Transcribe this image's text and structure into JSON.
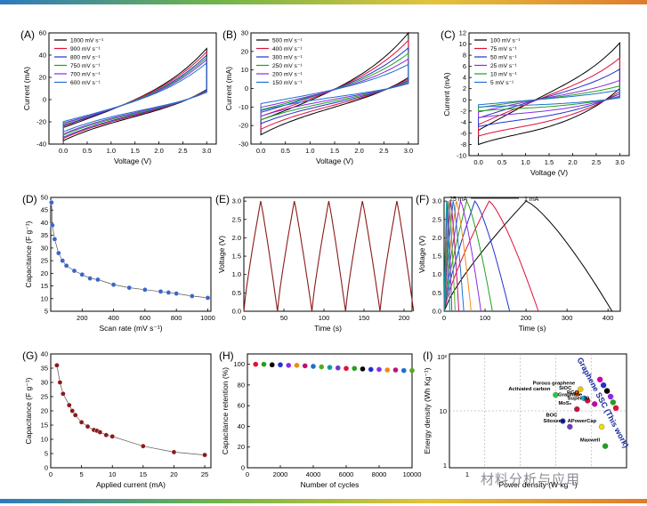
{
  "figure": {
    "watermark": "材料分析与应用"
  },
  "chart_data": [
    {
      "id": "A",
      "type": "line",
      "label": "(A)",
      "xlabel": "Voltage  (V)",
      "ylabel": "Current (mA)",
      "xlim": [
        -0.3,
        3.2
      ],
      "ylim": [
        -40,
        60
      ],
      "xticks": [
        0.0,
        0.5,
        1.0,
        1.5,
        2.0,
        2.5,
        3.0
      ],
      "xtick_labels": [
        "0.0",
        "0.5",
        "1.0",
        "1.5",
        "2.0",
        "2.5",
        "3.0"
      ],
      "yticks": [
        -40,
        -20,
        0,
        20,
        40,
        60
      ],
      "ytick_labels": [
        "-40",
        "-20",
        "0",
        "20",
        "40",
        "60"
      ],
      "legend_pos": "top-left",
      "series": [
        {
          "name": "1000 mV s⁻¹",
          "color": "#000000",
          "amp": 46,
          "neg": -37,
          "w": 14
        },
        {
          "name": "900 mV s⁻¹",
          "color": "#e0103a",
          "amp": 43,
          "neg": -35,
          "w": 13
        },
        {
          "name": "800 mV s⁻¹",
          "color": "#2233cc",
          "amp": 40,
          "neg": -34,
          "w": 12
        },
        {
          "name": "750 mV s⁻¹",
          "color": "#22a022",
          "amp": 38,
          "neg": -32,
          "w": 11
        },
        {
          "name": "700 mV s⁻¹",
          "color": "#8a2be2",
          "amp": 36,
          "neg": -31,
          "w": 10
        },
        {
          "name": "600 mV s⁻¹",
          "color": "#1f6fd1",
          "amp": 33,
          "neg": -29,
          "w": 9
        }
      ]
    },
    {
      "id": "B",
      "type": "line",
      "label": "(B)",
      "xlabel": "Voltage  (V)",
      "ylabel": "Current (mA)",
      "xlim": [
        -0.2,
        3.2
      ],
      "ylim": [
        -30,
        30
      ],
      "xticks": [
        0.0,
        0.5,
        1.0,
        1.5,
        2.0,
        2.5,
        3.0
      ],
      "xtick_labels": [
        "0.0",
        "0.5",
        "1.0",
        "1.5",
        "2.0",
        "2.5",
        "3.0"
      ],
      "yticks": [
        -30,
        -20,
        -10,
        0,
        10,
        20,
        30
      ],
      "ytick_labels": [
        "-30",
        "-20",
        "-10",
        "0",
        "10",
        "20",
        "30"
      ],
      "legend_pos": "top-left",
      "series": [
        {
          "name": "500 mV s⁻¹",
          "color": "#000000",
          "amp": 30,
          "neg": -25,
          "w": 9
        },
        {
          "name": "400 mV s⁻¹",
          "color": "#e0103a",
          "amp": 26,
          "neg": -22,
          "w": 8
        },
        {
          "name": "300 mV s⁻¹",
          "color": "#2233cc",
          "amp": 22,
          "neg": -19,
          "w": 7
        },
        {
          "name": "250 mV s⁻¹",
          "color": "#22a022",
          "amp": 19,
          "neg": -17,
          "w": 6
        },
        {
          "name": "200 mV s⁻¹",
          "color": "#8a2be2",
          "amp": 16,
          "neg": -15,
          "w": 5
        },
        {
          "name": "150 mV s⁻¹",
          "color": "#1f6fd1",
          "amp": 13,
          "neg": -12,
          "w": 4
        }
      ]
    },
    {
      "id": "C",
      "type": "line",
      "label": "(C)",
      "xlabel": "Voltage  (V)",
      "ylabel": "Current (mA)",
      "xlim": [
        -0.2,
        3.2
      ],
      "ylim": [
        -10,
        12
      ],
      "xticks": [
        0.0,
        0.5,
        1.0,
        1.5,
        2.0,
        2.5,
        3.0
      ],
      "xtick_labels": [
        "0.0",
        "0.5",
        "1.0",
        "1.5",
        "2.0",
        "2.5",
        "3.0"
      ],
      "yticks": [
        -10,
        -8,
        -6,
        -4,
        -2,
        0,
        2,
        4,
        6,
        8,
        10,
        12
      ],
      "ytick_labels": [
        "-10",
        "-8",
        "-6",
        "-4",
        "-2",
        "0",
        "2",
        "4",
        "6",
        "8",
        "10",
        "12"
      ],
      "legend_pos": "top-left",
      "series": [
        {
          "name": "100 mV s⁻¹",
          "color": "#000000",
          "amp": 10.2,
          "neg": -8,
          "w": 5.5
        },
        {
          "name": "75 mV s⁻¹",
          "color": "#e0103a",
          "amp": 7.5,
          "neg": -6.5,
          "w": 4.3
        },
        {
          "name": "50 mV s⁻¹",
          "color": "#2233cc",
          "amp": 5.5,
          "neg": -4.8,
          "w": 3.2
        },
        {
          "name": "25 mV s⁻¹",
          "color": "#8a2be2",
          "amp": 3.5,
          "neg": -3.2,
          "w": 2.2
        },
        {
          "name": "10 mV s⁻¹",
          "color": "#22a022",
          "amp": 2.5,
          "neg": -2,
          "w": 1.4
        },
        {
          "name": "5 mV s⁻¹",
          "color": "#1f6fd1",
          "amp": 1.8,
          "neg": -1.3,
          "w": 0.9
        }
      ]
    },
    {
      "id": "D",
      "type": "scatter",
      "label": "(D)",
      "xlabel": "Scan rate (mV s⁻¹)",
      "ylabel": "Capacitance (F g⁻¹)",
      "xlim": [
        0,
        1020
      ],
      "ylim": [
        5,
        50
      ],
      "xticks": [
        200,
        400,
        600,
        800,
        1000
      ],
      "xtick_labels": [
        "200",
        "400",
        "600",
        "800",
        "1000"
      ],
      "yticks": [
        5,
        10,
        15,
        20,
        25,
        30,
        35,
        40,
        45,
        50
      ],
      "ytick_labels": [
        "5",
        "10",
        "15",
        "20",
        "25",
        "30",
        "35",
        "40",
        "45",
        "50"
      ],
      "x": [
        5,
        10,
        25,
        50,
        75,
        100,
        150,
        200,
        250,
        300,
        400,
        500,
        600,
        700,
        750,
        800,
        900,
        1000
      ],
      "y": [
        48,
        39,
        33.5,
        28,
        25,
        23,
        21,
        19.5,
        18,
        17.5,
        15.5,
        14.3,
        13.5,
        12.8,
        12.4,
        12,
        11,
        10.3
      ]
    },
    {
      "id": "E",
      "type": "line",
      "label": "(E)",
      "xlabel": "Time (s)",
      "ylabel": "Voltage (V)",
      "xlim": [
        0,
        210
      ],
      "ylim": [
        0,
        3.1
      ],
      "xticks": [
        0,
        50,
        100,
        150,
        200
      ],
      "xtick_labels": [
        "0",
        "50",
        "100",
        "150",
        "200"
      ],
      "yticks": [
        0,
        0.5,
        1.0,
        1.5,
        2.0,
        2.5,
        3.0
      ],
      "ytick_labels": [
        "0.0",
        "0.5",
        "1.0",
        "1.5",
        "2.0",
        "2.5",
        "3.0"
      ],
      "cycles": [
        [
          0,
          21,
          42
        ],
        [
          42,
          63,
          85
        ],
        [
          85,
          106,
          127
        ],
        [
          127,
          148,
          170
        ],
        [
          170,
          191,
          212
        ]
      ],
      "vmax": 3.0
    },
    {
      "id": "F",
      "type": "line",
      "label": "(F)",
      "xlabel": "Time (s)",
      "ylabel": "Voltage (V)",
      "xlim": [
        0,
        430
      ],
      "ylim": [
        0,
        3.1
      ],
      "xticks": [
        0,
        100,
        200,
        300,
        400
      ],
      "xtick_labels": [
        "0",
        "100",
        "200",
        "300",
        "400"
      ],
      "yticks": [
        0,
        0.5,
        1.0,
        1.5,
        2.0,
        2.5,
        3.0
      ],
      "ytick_labels": [
        "0.0",
        "0.5",
        "1.0",
        "1.5",
        "2.0",
        "2.5",
        "3.0"
      ],
      "annot_left": "25 mA",
      "annot_right": "1 mA",
      "curves": [
        {
          "color": "#000000",
          "peak": 200,
          "end": 410
        },
        {
          "color": "#e0103a",
          "peak": 110,
          "end": 230
        },
        {
          "color": "#2233cc",
          "peak": 75,
          "end": 160
        },
        {
          "color": "#22a022",
          "peak": 55,
          "end": 118
        },
        {
          "color": "#8a2be2",
          "peak": 40,
          "end": 90
        },
        {
          "color": "#f08a1a",
          "peak": 30,
          "end": 66
        },
        {
          "color": "#1f6fd1",
          "peak": 22,
          "end": 48
        },
        {
          "color": "#c01070",
          "peak": 16,
          "end": 36
        },
        {
          "color": "#55aa22",
          "peak": 12,
          "end": 27
        },
        {
          "color": "#6a3dc8",
          "peak": 8,
          "end": 19
        },
        {
          "color": "#00a0a0",
          "peak": 6,
          "end": 14
        }
      ]
    },
    {
      "id": "G",
      "type": "scatter",
      "label": "(G)",
      "xlabel": "Applied current (mA)",
      "ylabel": "Capacitance (F g⁻¹)",
      "xlim": [
        0,
        26
      ],
      "ylim": [
        0,
        40
      ],
      "xticks": [
        0,
        5,
        10,
        15,
        20,
        25
      ],
      "xtick_labels": [
        "0",
        "5",
        "10",
        "15",
        "20",
        "25"
      ],
      "yticks": [
        0,
        5,
        10,
        15,
        20,
        25,
        30,
        35,
        40
      ],
      "ytick_labels": [
        "0",
        "5",
        "10",
        "15",
        "20",
        "25",
        "30",
        "35",
        "40"
      ],
      "x": [
        1,
        1.5,
        2,
        3,
        3.5,
        4,
        5,
        6,
        7,
        7.5,
        8,
        9,
        10,
        15,
        20,
        25
      ],
      "y": [
        36,
        30,
        26,
        22,
        20,
        18.5,
        16,
        14.5,
        13.3,
        13,
        12.5,
        11.5,
        11,
        7.6,
        5.5,
        4.5
      ]
    },
    {
      "id": "H",
      "type": "scatter",
      "label": "(H)",
      "xlabel": "Number of cycles",
      "ylabel": "Capacitance retention (%)",
      "xlim": [
        0,
        10000
      ],
      "ylim": [
        0,
        110
      ],
      "xticks": [
        0,
        2000,
        4000,
        6000,
        8000,
        10000
      ],
      "xtick_labels": [
        "0",
        "2000",
        "4000",
        "6000",
        "8000",
        "10000"
      ],
      "yticks": [
        0,
        20,
        40,
        60,
        80,
        100
      ],
      "ytick_labels": [
        "0",
        "20",
        "40",
        "60",
        "80",
        "100"
      ],
      "x": [
        500,
        1000,
        1500,
        2000,
        2500,
        3000,
        3500,
        4000,
        4500,
        5000,
        5500,
        6000,
        6500,
        7000,
        7500,
        8000,
        8500,
        9000,
        9500,
        10000
      ],
      "y": [
        100,
        100,
        99.5,
        99.5,
        99,
        99,
        98.5,
        98,
        97.5,
        97,
        96.5,
        96,
        96,
        95.5,
        95,
        95,
        94.5,
        94.5,
        94,
        94
      ],
      "colors": [
        "#e0103a",
        "#22a022",
        "#000000",
        "#2233cc",
        "#8a2be2",
        "#f08a1a",
        "#c01070",
        "#1f6fd1",
        "#55aa22",
        "#00a0a0",
        "#6a3dc8",
        "#e0103a",
        "#22a022",
        "#000000",
        "#2233cc",
        "#8a2be2",
        "#f08a1a",
        "#c01070",
        "#1f6fd1",
        "#55aa22"
      ]
    },
    {
      "id": "I",
      "type": "scatter",
      "label": "(I)",
      "xlabel": "Power density (W kg⁻¹)",
      "ylabel": "Energy density (Wh Kg⁻¹)",
      "xlim": [
        "10⁰",
        "10⁵"
      ],
      "ylim": [
        "1",
        "10²"
      ],
      "xtick_labels": [
        "1"
      ],
      "ytick_labels": [
        "1",
        "10",
        "10²"
      ],
      "highlight": "Graphene SSC (This work)",
      "points": [
        {
          "name": "Porous graphene",
          "px": 3.7,
          "py": 1.38,
          "color": "#f5c400"
        },
        {
          "name": "Activated carbon",
          "px": 3.0,
          "py": 1.28,
          "color": "#22cc44"
        },
        {
          "name": "SiOC",
          "px": 3.6,
          "py": 1.3,
          "color": "#ff6a00"
        },
        {
          "name": "RGO",
          "px": 3.8,
          "py": 1.22,
          "color": "#00b7eb"
        },
        {
          "name": "MoS₂",
          "px": 3.6,
          "py": 1.03,
          "color": "#d0103a"
        },
        {
          "name": "Graphene",
          "px": 3.9,
          "py": 1.18,
          "color": "#d0103a"
        },
        {
          "name": "Super 30",
          "px": 4.1,
          "py": 1.12,
          "color": "#cc00aa"
        },
        {
          "name": "BOC",
          "px": 3.2,
          "py": 0.82,
          "color": "#2233cc"
        },
        {
          "name": "Siloxene",
          "px": 3.4,
          "py": 0.72,
          "color": "#6a3dc8"
        },
        {
          "name": "APowerCap",
          "px": 4.3,
          "py": 0.72,
          "color": "#f0e000"
        },
        {
          "name": "Maxwell",
          "px": 4.4,
          "py": 0.38,
          "color": "#22a022"
        }
      ]
    }
  ]
}
